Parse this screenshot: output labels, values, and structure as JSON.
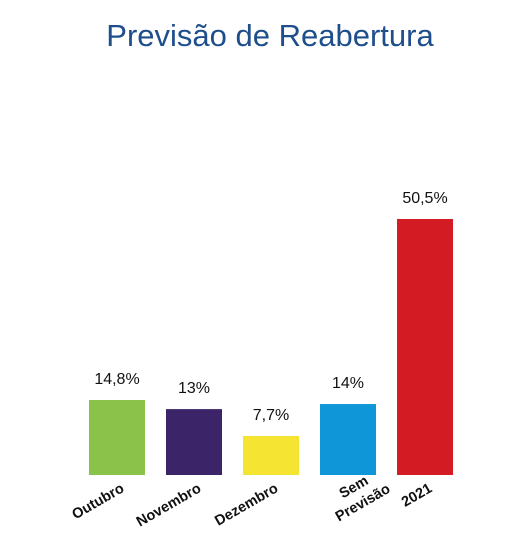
{
  "chart_data": {
    "type": "bar",
    "title": "Previsão de Reabertura",
    "categories": [
      "Outubro",
      "Novembro",
      "Dezembro",
      "Sem Previsão",
      "2021"
    ],
    "category_lines": [
      [
        "Outubro"
      ],
      [
        "Novembro"
      ],
      [
        "Dezembro"
      ],
      [
        "Sem",
        "Previsão"
      ],
      [
        "2021"
      ]
    ],
    "values": [
      14.8,
      13,
      7.7,
      14,
      50.5
    ],
    "value_labels": [
      "14,8%",
      "13%",
      "7,7%",
      "14%",
      "50,5%"
    ],
    "colors": [
      "#8bc34a",
      "#3c2468",
      "#f5e432",
      "#0f96d8",
      "#d21b22"
    ],
    "unit": "%",
    "xlabel": "",
    "ylabel": "",
    "ylim": [
      0,
      50.5
    ],
    "grid": false,
    "legend": "none",
    "title_color": "#1f4e8c"
  }
}
